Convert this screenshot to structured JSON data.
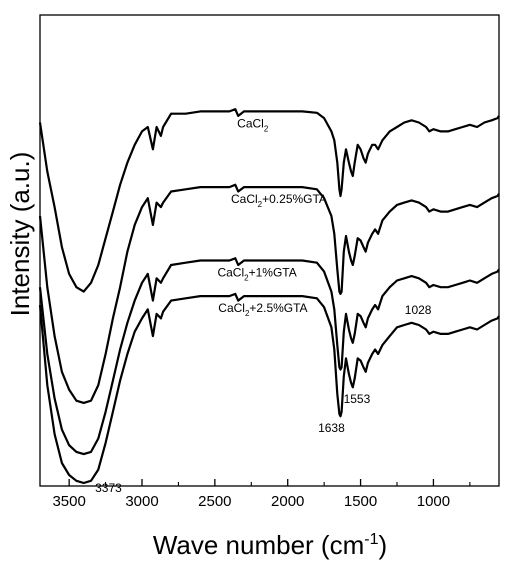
{
  "chart_data": {
    "type": "line",
    "xlabel_main": "Wave number (cm",
    "xlabel_sup": "-1",
    "xlabel_end": ")",
    "ylabel": "Intensity (a.u.)",
    "xlim": [
      3700,
      550
    ],
    "x_reversed": true,
    "x_ticks": [
      3500,
      3000,
      2500,
      2000,
      1500,
      1000
    ],
    "y_ticks_shown": false,
    "grid": false,
    "series": [
      {
        "label_parts": [
          "CaCl",
          "2",
          ""
        ],
        "label_x": 2240,
        "points": [
          [
            3700,
            0.81
          ],
          [
            3650,
            0.7
          ],
          [
            3600,
            0.62
          ],
          [
            3550,
            0.53
          ],
          [
            3500,
            0.47
          ],
          [
            3450,
            0.44
          ],
          [
            3400,
            0.43
          ],
          [
            3350,
            0.45
          ],
          [
            3300,
            0.49
          ],
          [
            3250,
            0.55
          ],
          [
            3200,
            0.61
          ],
          [
            3150,
            0.67
          ],
          [
            3100,
            0.72
          ],
          [
            3050,
            0.76
          ],
          [
            3000,
            0.79
          ],
          [
            2960,
            0.8
          ],
          [
            2925,
            0.75
          ],
          [
            2900,
            0.8
          ],
          [
            2870,
            0.78
          ],
          [
            2855,
            0.8
          ],
          [
            2800,
            0.83
          ],
          [
            2700,
            0.83
          ],
          [
            2600,
            0.835
          ],
          [
            2500,
            0.835
          ],
          [
            2400,
            0.835
          ],
          [
            2360,
            0.84
          ],
          [
            2340,
            0.825
          ],
          [
            2300,
            0.835
          ],
          [
            2200,
            0.835
          ],
          [
            2100,
            0.835
          ],
          [
            2000,
            0.835
          ],
          [
            1900,
            0.835
          ],
          [
            1800,
            0.832
          ],
          [
            1750,
            0.82
          ],
          [
            1700,
            0.79
          ],
          [
            1680,
            0.77
          ],
          [
            1660,
            0.72
          ],
          [
            1645,
            0.66
          ],
          [
            1638,
            0.645
          ],
          [
            1630,
            0.66
          ],
          [
            1615,
            0.72
          ],
          [
            1600,
            0.75
          ],
          [
            1580,
            0.72
          ],
          [
            1565,
            0.7
          ],
          [
            1553,
            0.69
          ],
          [
            1540,
            0.72
          ],
          [
            1520,
            0.76
          ],
          [
            1500,
            0.75
          ],
          [
            1480,
            0.73
          ],
          [
            1465,
            0.72
          ],
          [
            1450,
            0.74
          ],
          [
            1420,
            0.76
          ],
          [
            1400,
            0.76
          ],
          [
            1380,
            0.75
          ],
          [
            1350,
            0.77
          ],
          [
            1300,
            0.79
          ],
          [
            1250,
            0.8
          ],
          [
            1200,
            0.81
          ],
          [
            1150,
            0.815
          ],
          [
            1100,
            0.81
          ],
          [
            1050,
            0.8
          ],
          [
            1028,
            0.79
          ],
          [
            1000,
            0.795
          ],
          [
            950,
            0.79
          ],
          [
            900,
            0.79
          ],
          [
            850,
            0.795
          ],
          [
            800,
            0.8
          ],
          [
            750,
            0.805
          ],
          [
            700,
            0.8
          ],
          [
            650,
            0.81
          ],
          [
            600,
            0.815
          ],
          [
            560,
            0.82
          ],
          [
            550,
            0.825
          ]
        ]
      },
      {
        "label_parts": [
          "CaCl",
          "2",
          "+0.25%GTA"
        ],
        "label_x": 2060,
        "points": [
          [
            3700,
            0.6
          ],
          [
            3650,
            0.44
          ],
          [
            3600,
            0.33
          ],
          [
            3550,
            0.25
          ],
          [
            3500,
            0.21
          ],
          [
            3450,
            0.185
          ],
          [
            3400,
            0.18
          ],
          [
            3350,
            0.185
          ],
          [
            3300,
            0.22
          ],
          [
            3250,
            0.29
          ],
          [
            3200,
            0.37
          ],
          [
            3150,
            0.44
          ],
          [
            3100,
            0.52
          ],
          [
            3050,
            0.58
          ],
          [
            3000,
            0.62
          ],
          [
            2960,
            0.64
          ],
          [
            2925,
            0.58
          ],
          [
            2900,
            0.63
          ],
          [
            2870,
            0.62
          ],
          [
            2855,
            0.63
          ],
          [
            2800,
            0.655
          ],
          [
            2700,
            0.66
          ],
          [
            2600,
            0.665
          ],
          [
            2500,
            0.665
          ],
          [
            2400,
            0.665
          ],
          [
            2360,
            0.67
          ],
          [
            2340,
            0.655
          ],
          [
            2300,
            0.665
          ],
          [
            2200,
            0.665
          ],
          [
            2100,
            0.665
          ],
          [
            2000,
            0.665
          ],
          [
            1900,
            0.665
          ],
          [
            1800,
            0.66
          ],
          [
            1750,
            0.64
          ],
          [
            1700,
            0.6
          ],
          [
            1680,
            0.56
          ],
          [
            1660,
            0.48
          ],
          [
            1645,
            0.43
          ],
          [
            1638,
            0.425
          ],
          [
            1630,
            0.43
          ],
          [
            1615,
            0.52
          ],
          [
            1600,
            0.555
          ],
          [
            1580,
            0.52
          ],
          [
            1565,
            0.5
          ],
          [
            1553,
            0.49
          ],
          [
            1540,
            0.51
          ],
          [
            1520,
            0.55
          ],
          [
            1500,
            0.545
          ],
          [
            1480,
            0.53
          ],
          [
            1465,
            0.52
          ],
          [
            1450,
            0.54
          ],
          [
            1420,
            0.56
          ],
          [
            1400,
            0.57
          ],
          [
            1380,
            0.56
          ],
          [
            1350,
            0.59
          ],
          [
            1300,
            0.61
          ],
          [
            1250,
            0.625
          ],
          [
            1200,
            0.63
          ],
          [
            1150,
            0.635
          ],
          [
            1100,
            0.63
          ],
          [
            1050,
            0.62
          ],
          [
            1028,
            0.61
          ],
          [
            1000,
            0.615
          ],
          [
            950,
            0.61
          ],
          [
            900,
            0.61
          ],
          [
            850,
            0.615
          ],
          [
            800,
            0.62
          ],
          [
            750,
            0.625
          ],
          [
            700,
            0.62
          ],
          [
            650,
            0.63
          ],
          [
            600,
            0.64
          ],
          [
            560,
            0.645
          ],
          [
            550,
            0.65
          ]
        ]
      },
      {
        "label_parts": [
          "CaCl",
          "2",
          "+1%GTA"
        ],
        "label_x": 2210,
        "points": [
          [
            3700,
            0.44
          ],
          [
            3650,
            0.29
          ],
          [
            3600,
            0.19
          ],
          [
            3550,
            0.12
          ],
          [
            3500,
            0.085
          ],
          [
            3450,
            0.07
          ],
          [
            3400,
            0.065
          ],
          [
            3350,
            0.07
          ],
          [
            3300,
            0.1
          ],
          [
            3250,
            0.16
          ],
          [
            3200,
            0.23
          ],
          [
            3150,
            0.3
          ],
          [
            3100,
            0.36
          ],
          [
            3050,
            0.41
          ],
          [
            3000,
            0.45
          ],
          [
            2960,
            0.47
          ],
          [
            2925,
            0.41
          ],
          [
            2900,
            0.46
          ],
          [
            2870,
            0.45
          ],
          [
            2855,
            0.46
          ],
          [
            2800,
            0.49
          ],
          [
            2700,
            0.495
          ],
          [
            2600,
            0.5
          ],
          [
            2500,
            0.5
          ],
          [
            2400,
            0.5
          ],
          [
            2360,
            0.505
          ],
          [
            2340,
            0.49
          ],
          [
            2300,
            0.5
          ],
          [
            2200,
            0.5
          ],
          [
            2100,
            0.5
          ],
          [
            2000,
            0.5
          ],
          [
            1900,
            0.5
          ],
          [
            1800,
            0.495
          ],
          [
            1750,
            0.475
          ],
          [
            1700,
            0.43
          ],
          [
            1680,
            0.39
          ],
          [
            1660,
            0.31
          ],
          [
            1645,
            0.26
          ],
          [
            1638,
            0.255
          ],
          [
            1630,
            0.26
          ],
          [
            1615,
            0.34
          ],
          [
            1600,
            0.38
          ],
          [
            1580,
            0.345
          ],
          [
            1565,
            0.325
          ],
          [
            1553,
            0.315
          ],
          [
            1540,
            0.335
          ],
          [
            1520,
            0.38
          ],
          [
            1500,
            0.375
          ],
          [
            1480,
            0.36
          ],
          [
            1465,
            0.35
          ],
          [
            1450,
            0.37
          ],
          [
            1420,
            0.39
          ],
          [
            1400,
            0.4
          ],
          [
            1380,
            0.39
          ],
          [
            1350,
            0.42
          ],
          [
            1300,
            0.44
          ],
          [
            1250,
            0.455
          ],
          [
            1200,
            0.46
          ],
          [
            1150,
            0.465
          ],
          [
            1100,
            0.46
          ],
          [
            1050,
            0.45
          ],
          [
            1028,
            0.44
          ],
          [
            1000,
            0.445
          ],
          [
            950,
            0.44
          ],
          [
            900,
            0.44
          ],
          [
            850,
            0.445
          ],
          [
            800,
            0.45
          ],
          [
            750,
            0.455
          ],
          [
            700,
            0.45
          ],
          [
            650,
            0.46
          ],
          [
            600,
            0.47
          ],
          [
            560,
            0.475
          ],
          [
            550,
            0.48
          ]
        ]
      },
      {
        "label_parts": [
          "CaCl",
          "2",
          "+2.5%GTA"
        ],
        "label_x": 2170,
        "points": [
          [
            3700,
            0.4
          ],
          [
            3650,
            0.22
          ],
          [
            3600,
            0.11
          ],
          [
            3550,
            0.045
          ],
          [
            3500,
            0.018
          ],
          [
            3450,
            0.005
          ],
          [
            3400,
            0.0
          ],
          [
            3350,
            0.005
          ],
          [
            3300,
            0.03
          ],
          [
            3250,
            0.09
          ],
          [
            3200,
            0.16
          ],
          [
            3150,
            0.23
          ],
          [
            3100,
            0.29
          ],
          [
            3050,
            0.34
          ],
          [
            3000,
            0.37
          ],
          [
            2960,
            0.39
          ],
          [
            2925,
            0.33
          ],
          [
            2900,
            0.38
          ],
          [
            2870,
            0.37
          ],
          [
            2855,
            0.385
          ],
          [
            2800,
            0.41
          ],
          [
            2700,
            0.415
          ],
          [
            2600,
            0.42
          ],
          [
            2500,
            0.42
          ],
          [
            2400,
            0.42
          ],
          [
            2360,
            0.425
          ],
          [
            2340,
            0.41
          ],
          [
            2300,
            0.42
          ],
          [
            2200,
            0.42
          ],
          [
            2100,
            0.42
          ],
          [
            2000,
            0.42
          ],
          [
            1900,
            0.42
          ],
          [
            1800,
            0.415
          ],
          [
            1750,
            0.395
          ],
          [
            1700,
            0.35
          ],
          [
            1680,
            0.3
          ],
          [
            1660,
            0.2
          ],
          [
            1645,
            0.155
          ],
          [
            1638,
            0.15
          ],
          [
            1630,
            0.16
          ],
          [
            1615,
            0.24
          ],
          [
            1600,
            0.28
          ],
          [
            1580,
            0.245
          ],
          [
            1565,
            0.225
          ],
          [
            1553,
            0.215
          ],
          [
            1540,
            0.235
          ],
          [
            1520,
            0.28
          ],
          [
            1500,
            0.275
          ],
          [
            1480,
            0.26
          ],
          [
            1465,
            0.25
          ],
          [
            1450,
            0.27
          ],
          [
            1420,
            0.29
          ],
          [
            1400,
            0.3
          ],
          [
            1380,
            0.29
          ],
          [
            1350,
            0.31
          ],
          [
            1300,
            0.33
          ],
          [
            1250,
            0.35
          ],
          [
            1200,
            0.355
          ],
          [
            1150,
            0.36
          ],
          [
            1100,
            0.355
          ],
          [
            1050,
            0.345
          ],
          [
            1028,
            0.335
          ],
          [
            1000,
            0.34
          ],
          [
            950,
            0.335
          ],
          [
            900,
            0.335
          ],
          [
            850,
            0.34
          ],
          [
            800,
            0.345
          ],
          [
            750,
            0.35
          ],
          [
            700,
            0.345
          ],
          [
            650,
            0.355
          ],
          [
            600,
            0.365
          ],
          [
            560,
            0.37
          ],
          [
            550,
            0.375
          ]
        ]
      }
    ],
    "annotations": [
      {
        "text": "3373",
        "x": 3230,
        "y": -0.02
      },
      {
        "text": "1638",
        "x": 1700,
        "y": 0.115
      },
      {
        "text": "1553",
        "x": 1525,
        "y": 0.18
      },
      {
        "text": "1028",
        "x": 1105,
        "y": 0.38
      }
    ]
  }
}
